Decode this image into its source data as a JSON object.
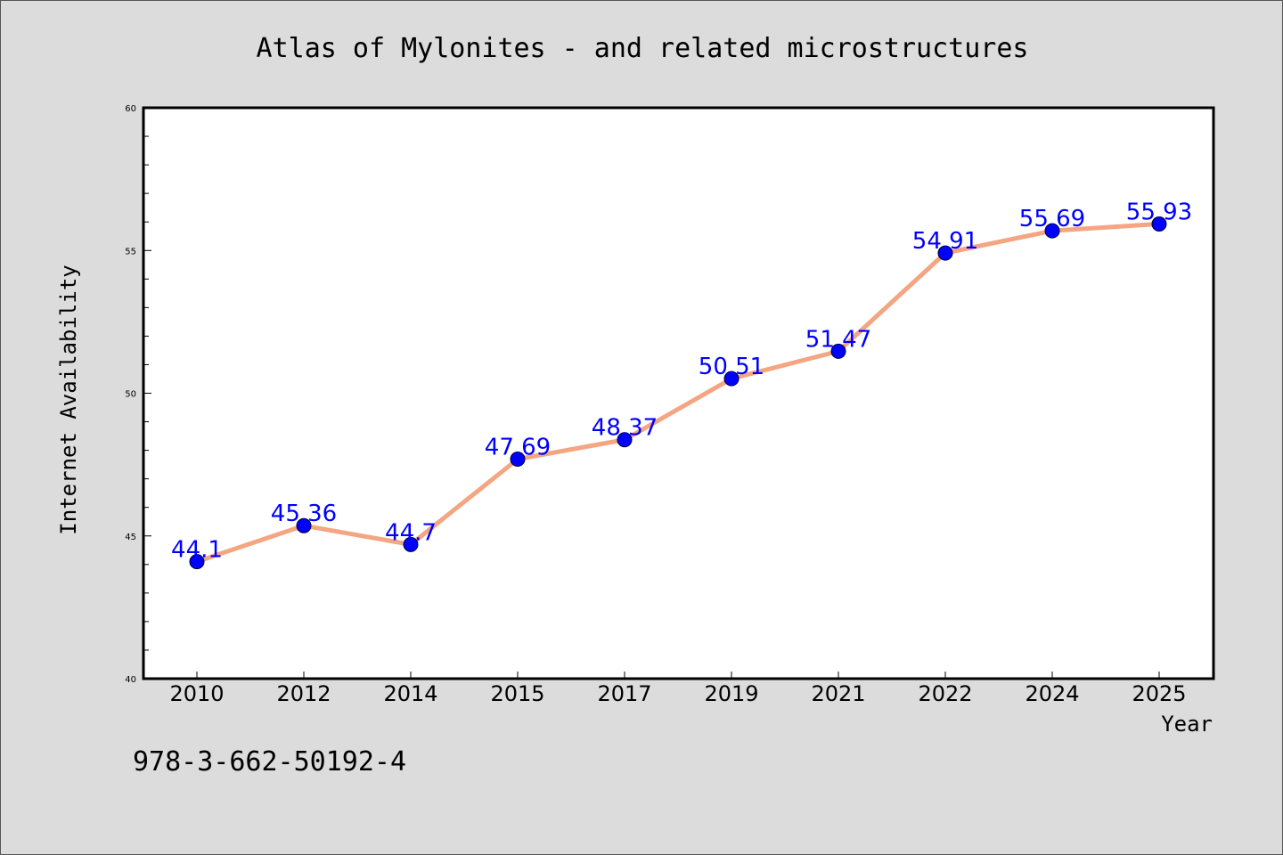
{
  "chart_data": {
    "type": "line",
    "title": "Atlas of Mylonites - and related microstructures",
    "xlabel": "Year",
    "ylabel": "Internet Availability",
    "categories": [
      "2010",
      "2012",
      "2014",
      "2015",
      "2017",
      "2019",
      "2021",
      "2022",
      "2024",
      "2025"
    ],
    "series": [
      {
        "values": [
          44.1,
          45.36,
          44.7,
          47.69,
          48.37,
          50.51,
          51.47,
          54.91,
          55.69,
          55.93
        ],
        "data_labels": [
          "44.1",
          "45.36",
          "44.7",
          "47.69",
          "48.37",
          "50.51",
          "51.47",
          "54.91",
          "55.69",
          "55.93"
        ],
        "line_color": "#f4a582",
        "marker_color": "#0000ff",
        "label_color": "#0000ff"
      }
    ],
    "ylim": [
      40,
      60
    ],
    "y_major_ticks": [
      40,
      45,
      50,
      55,
      60
    ],
    "y_minor_step": 1,
    "grid": false,
    "legend": "none"
  },
  "footer": {
    "isbn": "978-3-662-50192-4"
  },
  "colors": {
    "background": "#dcdcdc",
    "plot_background": "#ffffff",
    "axis": "#000000"
  }
}
